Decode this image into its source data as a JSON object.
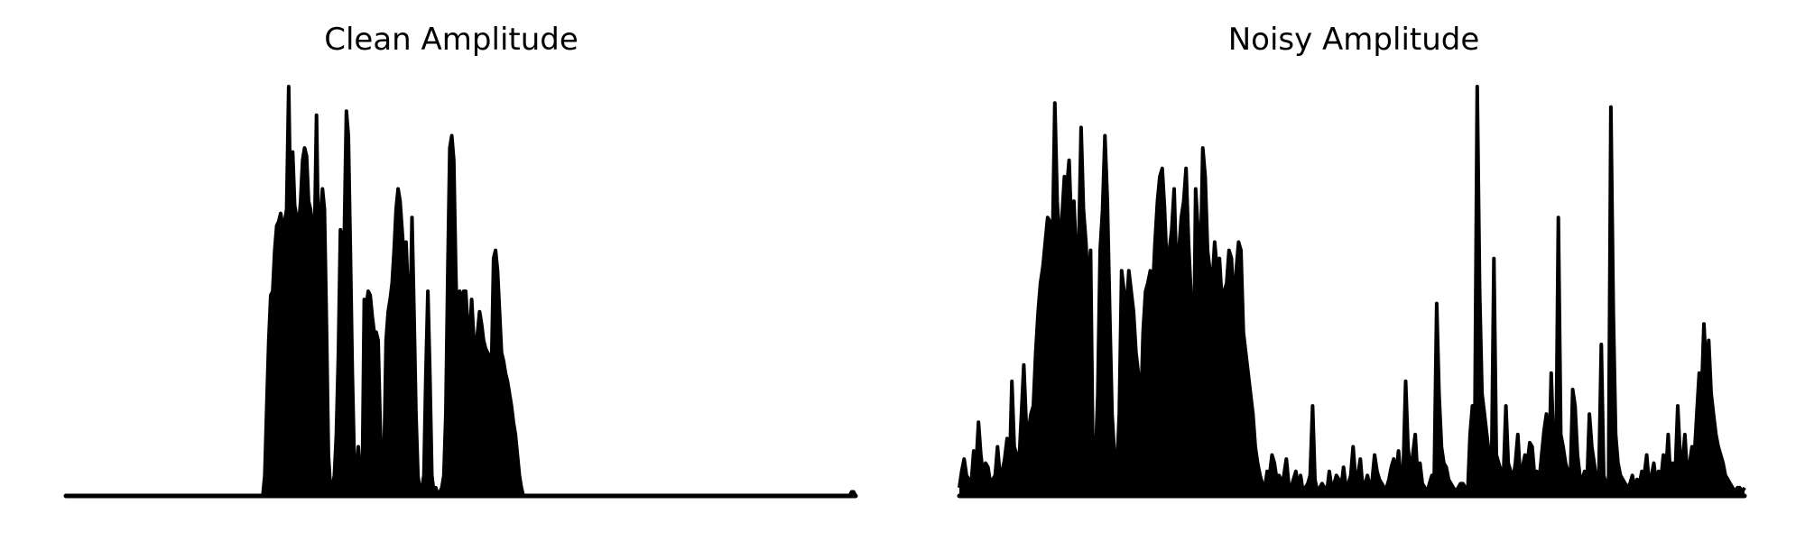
{
  "chart_data": [
    {
      "type": "line",
      "title": "Clean Amplitude",
      "xlabel": "",
      "ylabel": "",
      "axes_visible": false,
      "grid": false,
      "color": "#000000",
      "xlim": [
        0,
        1000
      ],
      "ylim": [
        0,
        1.0
      ],
      "series": [
        {
          "values": [
            0,
            0,
            0,
            0,
            0,
            0,
            0,
            0,
            0,
            0,
            0,
            0,
            0,
            0,
            0,
            0,
            0,
            0,
            0,
            0,
            0,
            0,
            0,
            0,
            0,
            0,
            0,
            0,
            0,
            0,
            0,
            0,
            0,
            0,
            0,
            0,
            0,
            0,
            0,
            0,
            0,
            0,
            0,
            0,
            0,
            0,
            0,
            0,
            0,
            0,
            0,
            0,
            0,
            0,
            0,
            0,
            0,
            0,
            0,
            0,
            0,
            0,
            0,
            0,
            0,
            0,
            0,
            0,
            0,
            0,
            0,
            0,
            0,
            0,
            0,
            0,
            0,
            0,
            0,
            0,
            0,
            0,
            0,
            0,
            0,
            0,
            0,
            0,
            0,
            0,
            0,
            0,
            0,
            0,
            0,
            0,
            0,
            0,
            0,
            0,
            0.05,
            0.22,
            0.38,
            0.49,
            0.5,
            0.6,
            0.66,
            0.67,
            0.69,
            0.66,
            0.67,
            0.7,
            1.0,
            0.67,
            0.84,
            0.71,
            0.68,
            0.66,
            0.72,
            0.82,
            0.85,
            0.83,
            0.72,
            0.7,
            0.66,
            0.63,
            0.93,
            0.6,
            0.68,
            0.75,
            0.7,
            0.42,
            0.1,
            0.02,
            0.02,
            0.05,
            0.15,
            0.35,
            0.65,
            0.62,
            0.65,
            0.94,
            0.88,
            0.6,
            0.3,
            0.08,
            0.05,
            0.12,
            0.05,
            0.02,
            0.48,
            0.46,
            0.5,
            0.49,
            0.44,
            0.4,
            0.4,
            0.38,
            0.18,
            0.05,
            0.1,
            0.38,
            0.45,
            0.48,
            0.52,
            0.6,
            0.7,
            0.75,
            0.72,
            0.65,
            0.58,
            0.62,
            0.5,
            0.4,
            0.68,
            0.45,
            0.2,
            0.05,
            0.01,
            0.02,
            0.05,
            0.3,
            0.5,
            0.3,
            0.05,
            0.01,
            0.02,
            0.0,
            0.01,
            0.02,
            0.05,
            0.2,
            0.55,
            0.85,
            0.88,
            0.82,
            0.55,
            0.35,
            0.5,
            0.47,
            0.5,
            0.5,
            0.42,
            0.38,
            0.48,
            0.39,
            0.36,
            0.4,
            0.45,
            0.42,
            0.38,
            0.36,
            0.35,
            0.34,
            0.32,
            0.58,
            0.6,
            0.55,
            0.45,
            0.35,
            0.33,
            0.3,
            0.28,
            0.25,
            0.22,
            0.18,
            0.15,
            0.1,
            0.05,
            0.02,
            0,
            0,
            0,
            0,
            0,
            0,
            0,
            0,
            0,
            0,
            0,
            0,
            0,
            0,
            0,
            0,
            0,
            0,
            0,
            0,
            0,
            0,
            0,
            0,
            0,
            0,
            0,
            0,
            0,
            0,
            0,
            0,
            0,
            0,
            0,
            0,
            0,
            0,
            0,
            0,
            0,
            0,
            0,
            0,
            0,
            0,
            0,
            0,
            0,
            0,
            0,
            0,
            0,
            0,
            0,
            0,
            0,
            0,
            0,
            0,
            0,
            0,
            0,
            0,
            0,
            0,
            0,
            0,
            0,
            0,
            0,
            0,
            0,
            0,
            0,
            0,
            0,
            0,
            0,
            0,
            0,
            0,
            0,
            0,
            0,
            0,
            0,
            0,
            0,
            0,
            0,
            0,
            0,
            0,
            0,
            0,
            0,
            0,
            0,
            0,
            0,
            0,
            0,
            0,
            0,
            0,
            0,
            0,
            0,
            0,
            0,
            0,
            0,
            0,
            0,
            0,
            0,
            0,
            0,
            0,
            0,
            0,
            0,
            0,
            0,
            0,
            0,
            0,
            0,
            0,
            0,
            0,
            0,
            0,
            0,
            0,
            0,
            0,
            0,
            0,
            0,
            0,
            0,
            0,
            0,
            0,
            0,
            0,
            0,
            0,
            0,
            0,
            0,
            0,
            0,
            0,
            0,
            0,
            0,
            0,
            0,
            0,
            0,
            0,
            0,
            0.01,
            0.01,
            0
          ]
        }
      ]
    },
    {
      "type": "line",
      "title": "Noisy Amplitude",
      "xlabel": "",
      "ylabel": "",
      "axes_visible": false,
      "grid": false,
      "color": "#000000",
      "xlim": [
        0,
        1000
      ],
      "ylim": [
        0,
        1.0
      ],
      "series": [
        {
          "values": [
            0.02,
            0.06,
            0.09,
            0.05,
            0.04,
            0.03,
            0.11,
            0.07,
            0.18,
            0.1,
            0.05,
            0.08,
            0.07,
            0.03,
            0.04,
            0.05,
            0.12,
            0.05,
            0.06,
            0.09,
            0.14,
            0.05,
            0.28,
            0.12,
            0.1,
            0.08,
            0.2,
            0.32,
            0.18,
            0.16,
            0.2,
            0.22,
            0.35,
            0.45,
            0.52,
            0.56,
            0.62,
            0.68,
            0.67,
            0.6,
            0.96,
            0.72,
            0.62,
            0.68,
            0.78,
            0.75,
            0.82,
            0.65,
            0.72,
            0.58,
            0.6,
            0.9,
            0.7,
            0.62,
            0.5,
            0.6,
            0.07,
            0.08,
            0.25,
            0.6,
            0.7,
            0.88,
            0.72,
            0.45,
            0.2,
            0.1,
            0.06,
            0.2,
            0.55,
            0.5,
            0.45,
            0.55,
            0.5,
            0.45,
            0.35,
            0.3,
            0.2,
            0.4,
            0.5,
            0.52,
            0.55,
            0.5,
            0.62,
            0.72,
            0.78,
            0.8,
            0.7,
            0.55,
            0.6,
            0.65,
            0.75,
            0.55,
            0.6,
            0.68,
            0.72,
            0.8,
            0.62,
            0.5,
            0.2,
            0.75,
            0.65,
            0.56,
            0.85,
            0.78,
            0.6,
            0.55,
            0.52,
            0.62,
            0.55,
            0.58,
            0.48,
            0.5,
            0.52,
            0.6,
            0.58,
            0.45,
            0.55,
            0.62,
            0.6,
            0.4,
            0.35,
            0.3,
            0.25,
            0.2,
            0.12,
            0.08,
            0.05,
            0.03,
            0.02,
            0.06,
            0.05,
            0.1,
            0.08,
            0.04,
            0.05,
            0.03,
            0.05,
            0.09,
            0.03,
            0.02,
            0.04,
            0.06,
            0.02,
            0.05,
            0.01,
            0.02,
            0.03,
            0.05,
            0.22,
            0.04,
            0.01,
            0.02,
            0.03,
            0.02,
            0.01,
            0.06,
            0.02,
            0.03,
            0.05,
            0.04,
            0.02,
            0.07,
            0.02,
            0.03,
            0.05,
            0.12,
            0.04,
            0.05,
            0.09,
            0.02,
            0.03,
            0.05,
            0.02,
            0.04,
            0.1,
            0.06,
            0.04,
            0.03,
            0.02,
            0.02,
            0.04,
            0.07,
            0.09,
            0.05,
            0.11,
            0.04,
            0.07,
            0.28,
            0.12,
            0.06,
            0.1,
            0.15,
            0.05,
            0.08,
            0.03,
            0.02,
            0.01,
            0.03,
            0.05,
            0.05,
            0.47,
            0.25,
            0.12,
            0.08,
            0.07,
            0.04,
            0.03,
            0.02,
            0.01,
            0.02,
            0.03,
            0.03,
            0.02,
            0.01,
            0.15,
            0.22,
            0.18,
            1.0,
            0.5,
            0.25,
            0.2,
            0.15,
            0.1,
            0.06,
            0.58,
            0.1,
            0.08,
            0.06,
            0.05,
            0.22,
            0.08,
            0.06,
            0.04,
            0.08,
            0.15,
            0.05,
            0.07,
            0.1,
            0.08,
            0.13,
            0.12,
            0.05,
            0.06,
            0.04,
            0.1,
            0.16,
            0.2,
            0.06,
            0.3,
            0.12,
            0.08,
            0.68,
            0.15,
            0.12,
            0.08,
            0.06,
            0.04,
            0.26,
            0.22,
            0.1,
            0.05,
            0.04,
            0.06,
            0.03,
            0.2,
            0.12,
            0.08,
            0.04,
            0.06,
            0.37,
            0.05,
            0.03,
            0.02,
            0.95,
            0.45,
            0.15,
            0.08,
            0.05,
            0.04,
            0.03,
            0.02,
            0.03,
            0.05,
            0.02,
            0.04,
            0.03,
            0.06,
            0.05,
            0.1,
            0.03,
            0.05,
            0.08,
            0.03,
            0.06,
            0.04,
            0.1,
            0.05,
            0.15,
            0.04,
            0.08,
            0.06,
            0.22,
            0.1,
            0.08,
            0.15,
            0.05,
            0.08,
            0.12,
            0.1,
            0.2,
            0.3,
            0.25,
            0.42,
            0.3,
            0.38,
            0.25,
            0.2,
            0.15,
            0.12,
            0.1,
            0.08,
            0.05,
            0.04,
            0.03,
            0.02,
            0.01,
            0.02,
            0.02,
            0.01,
            0.02
          ]
        }
      ]
    }
  ]
}
